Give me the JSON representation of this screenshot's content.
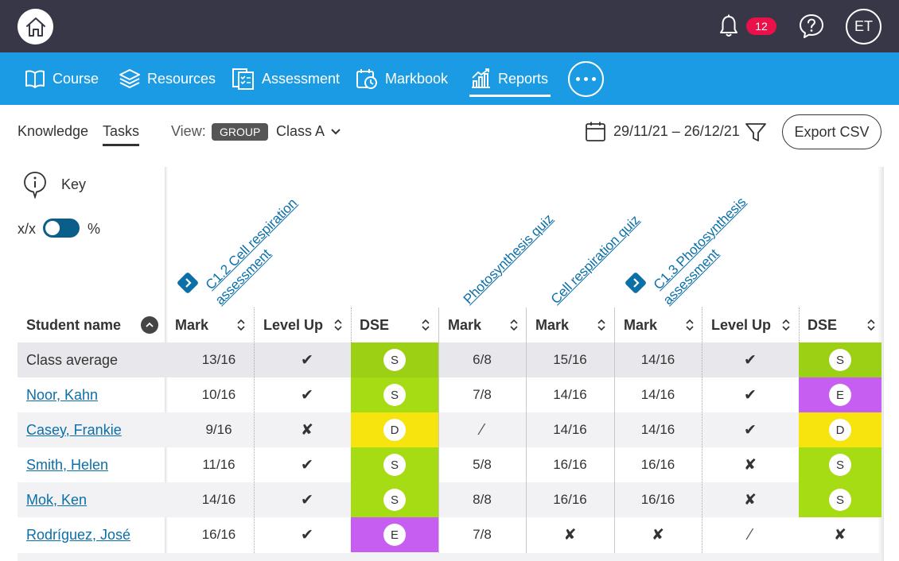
{
  "topbar": {
    "notification_count": "12",
    "avatar_initials": "ET"
  },
  "nav": {
    "items": [
      {
        "label": "Course",
        "icon": "book-icon"
      },
      {
        "label": "Resources",
        "icon": "layers-icon"
      },
      {
        "label": "Assessment",
        "icon": "clipboard-icon"
      },
      {
        "label": "Markbook",
        "icon": "clock-book-icon"
      },
      {
        "label": "Reports",
        "icon": "bar-chart-icon",
        "active": true
      }
    ]
  },
  "toolbar": {
    "tab_knowledge": "Knowledge",
    "tab_tasks": "Tasks",
    "view_label": "View:",
    "group_pill": "GROUP",
    "class_select": "Class A",
    "date_range": "29/11/21 – 26/12/21",
    "export_label": "Export CSV"
  },
  "panel": {
    "key_label": "Key",
    "toggle_left": "x/x",
    "toggle_right": "%"
  },
  "columns": {
    "assessments": [
      {
        "line1": "C1.2 Cell respiration",
        "line2": "assessment",
        "has_icon": true
      },
      {
        "line1": "Photosynthesis quiz",
        "line2": "",
        "has_icon": false
      },
      {
        "line1": "Cell respiration quiz",
        "line2": "",
        "has_icon": false
      },
      {
        "line1": "C1.3 Photosynthesis",
        "line2": "assessment",
        "has_icon": true
      }
    ],
    "headers": [
      "Student name",
      "Mark",
      "Level Up",
      "DSE",
      "Mark",
      "Mark",
      "Mark",
      "Level Up",
      "DSE"
    ]
  },
  "colors": {
    "S": "#a6dc13",
    "D": "#f7e40e",
    "E": "#c65ef2",
    "S_avg": "#9bd014"
  },
  "rows": [
    {
      "name": "Class average",
      "link": false,
      "c1_mark": "13/16",
      "c1_level": "✔",
      "c1_dse": "S",
      "q1": "6/8",
      "q2": "15/16",
      "c2_mark": "14/16",
      "c2_level": "✔",
      "c2_dse": "S"
    },
    {
      "name": "Noor, Kahn",
      "link": true,
      "c1_mark": "10/16",
      "c1_level": "✔",
      "c1_dse": "S",
      "q1": "7/8",
      "q2": "14/16",
      "c2_mark": "14/16",
      "c2_level": "✔",
      "c2_dse": "E"
    },
    {
      "name": "Casey, Frankie",
      "link": true,
      "c1_mark": "9/16",
      "c1_level": "✘",
      "c1_dse": "D",
      "q1": "⁄",
      "q2": "14/16",
      "c2_mark": "14/16",
      "c2_level": "✔",
      "c2_dse": "D"
    },
    {
      "name": "Smith, Helen",
      "link": true,
      "c1_mark": "11/16",
      "c1_level": "✔",
      "c1_dse": "S",
      "q1": "5/8",
      "q2": "16/16",
      "c2_mark": "16/16",
      "c2_level": "✘",
      "c2_dse": "S"
    },
    {
      "name": "Mok, Ken",
      "link": true,
      "c1_mark": "14/16",
      "c1_level": "✔",
      "c1_dse": "S",
      "q1": "8/8",
      "q2": "16/16",
      "c2_mark": "16/16",
      "c2_level": "✘",
      "c2_dse": "S"
    },
    {
      "name": "Rodríguez, José",
      "link": true,
      "c1_mark": "16/16",
      "c1_level": "✔",
      "c1_dse": "E",
      "q1": "7/8",
      "q2": "✘",
      "c2_mark": "✘",
      "c2_level": "⁄",
      "c2_dse": "✘"
    }
  ]
}
